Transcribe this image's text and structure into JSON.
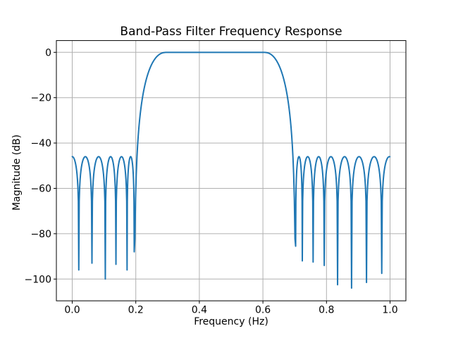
{
  "figure": {
    "background": "#ffffff"
  },
  "chart_data": {
    "type": "line",
    "title": "Band-Pass Filter Frequency Response",
    "xlabel": "Frequency (Hz)",
    "ylabel": "Magnitude (dB)",
    "xlim": [
      -0.05,
      1.05
    ],
    "ylim": [
      -109.6,
      5.2
    ],
    "grid": true,
    "grid_color": "#b0b0b0",
    "axis_color": "#000000",
    "line_color": "#1f77b4",
    "legend": "none",
    "xticks": {
      "values": [
        0.0,
        0.2,
        0.4,
        0.6,
        0.8,
        1.0
      ],
      "labels": [
        "0.0",
        "0.2",
        "0.4",
        "0.6",
        "0.8",
        "1.0"
      ]
    },
    "yticks": {
      "values": [
        0,
        -20,
        -40,
        -60,
        -80,
        -100
      ],
      "labels": [
        "0",
        "−20",
        "−40",
        "−60",
        "−80",
        "−100"
      ]
    },
    "response": {
      "passband_db": 0,
      "flat_region": [
        0.3,
        0.6
      ],
      "sidelobe_peak_db": -46,
      "left_transition": {
        "from": 0.195,
        "to": 0.3,
        "edge_depth_db": -88
      },
      "right_transition": {
        "from": 0.6,
        "to": 0.703,
        "edge_depth_db": -85.5
      },
      "left_stopband": {
        "virtual_null": -0.0205,
        "nulls": [
          [
            0.0205,
            -96
          ],
          [
            0.062,
            -93
          ],
          [
            0.104,
            -100
          ],
          [
            0.1375,
            -93.5
          ],
          [
            0.1725,
            -96
          ],
          [
            0.195,
            -88
          ]
        ]
      },
      "right_stopband": {
        "virtual_null": 1.022,
        "nulls": [
          [
            0.703,
            -85.5
          ],
          [
            0.724,
            -92
          ],
          [
            0.758,
            -92.5
          ],
          [
            0.793,
            -94
          ],
          [
            0.835,
            -102.5
          ],
          [
            0.879,
            -104
          ],
          [
            0.926,
            -101.5
          ],
          [
            0.974,
            -97.5
          ]
        ]
      }
    }
  }
}
